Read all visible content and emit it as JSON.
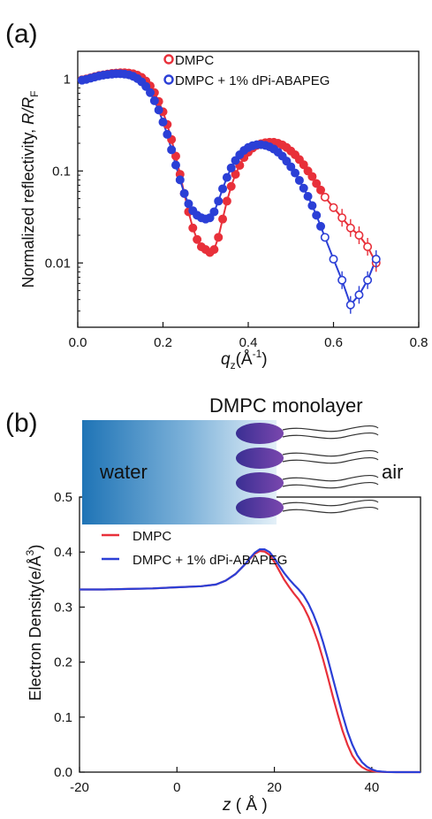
{
  "panels": {
    "a": {
      "label": "(a)"
    },
    "b": {
      "label": "(b)"
    }
  },
  "colors": {
    "dmpc": "#e8303a",
    "peg": "#2b3fd6",
    "water_dark": "#1f74b6",
    "water_light": "#dcebf6",
    "headgroup": "#6a3fa0"
  },
  "chart_data": [
    {
      "type": "scatter",
      "panel": "a",
      "ylabel_main": "Normalized reflectivity, ",
      "ylabel_italic": "R/R",
      "ylabel_sub": "F",
      "xlabel_main": "q",
      "xlabel_sub": "z",
      "xlabel_unit": "(Å",
      "xlabel_sup": "-1",
      "xlabel_close": ")",
      "xlim": [
        0,
        0.8
      ],
      "ylim": [
        0.002,
        2
      ],
      "yscale": "log",
      "xticks": [
        "0.0",
        "0.2",
        "0.4",
        "0.6",
        "0.8"
      ],
      "xtick_values": [
        0,
        0.2,
        0.4,
        0.6,
        0.8
      ],
      "yticks": [
        "1",
        "0.1",
        "0.01"
      ],
      "ytick_values": [
        1,
        0.1,
        0.01
      ],
      "legend_position": "top-right",
      "series": [
        {
          "name": "DMPC",
          "marker": "open-circle",
          "x": [
            0.01,
            0.02,
            0.03,
            0.04,
            0.05,
            0.06,
            0.07,
            0.08,
            0.09,
            0.1,
            0.11,
            0.12,
            0.13,
            0.14,
            0.15,
            0.16,
            0.17,
            0.18,
            0.19,
            0.2,
            0.21,
            0.22,
            0.23,
            0.24,
            0.25,
            0.26,
            0.27,
            0.28,
            0.29,
            0.3,
            0.31,
            0.32,
            0.33,
            0.34,
            0.35,
            0.36,
            0.37,
            0.38,
            0.39,
            0.4,
            0.41,
            0.42,
            0.43,
            0.44,
            0.45,
            0.46,
            0.47,
            0.48,
            0.49,
            0.5,
            0.51,
            0.52,
            0.53,
            0.54,
            0.55,
            0.56,
            0.57,
            0.58,
            0.6,
            0.62,
            0.64,
            0.66,
            0.68,
            0.7
          ],
          "y": [
            0.98,
            1.0,
            1.03,
            1.06,
            1.09,
            1.11,
            1.13,
            1.15,
            1.16,
            1.17,
            1.17,
            1.16,
            1.14,
            1.1,
            1.04,
            0.95,
            0.84,
            0.71,
            0.57,
            0.44,
            0.32,
            0.22,
            0.145,
            0.092,
            0.057,
            0.036,
            0.024,
            0.018,
            0.015,
            0.014,
            0.013,
            0.014,
            0.019,
            0.03,
            0.047,
            0.068,
            0.092,
            0.115,
            0.14,
            0.16,
            0.177,
            0.19,
            0.198,
            0.203,
            0.205,
            0.205,
            0.2,
            0.192,
            0.18,
            0.165,
            0.15,
            0.133,
            0.117,
            0.1,
            0.087,
            0.073,
            0.062,
            0.052,
            0.04,
            0.031,
            0.024,
            0.02,
            0.015,
            0.01
          ]
        },
        {
          "name": "DMPC + 1% dPi-ABAPEG",
          "marker": "open-circle",
          "x": [
            0.01,
            0.02,
            0.03,
            0.04,
            0.05,
            0.06,
            0.07,
            0.08,
            0.09,
            0.1,
            0.11,
            0.12,
            0.13,
            0.14,
            0.15,
            0.16,
            0.17,
            0.18,
            0.19,
            0.2,
            0.21,
            0.22,
            0.23,
            0.24,
            0.25,
            0.26,
            0.27,
            0.28,
            0.29,
            0.3,
            0.31,
            0.32,
            0.33,
            0.34,
            0.35,
            0.36,
            0.37,
            0.38,
            0.39,
            0.4,
            0.41,
            0.42,
            0.43,
            0.44,
            0.45,
            0.46,
            0.47,
            0.48,
            0.49,
            0.5,
            0.51,
            0.52,
            0.53,
            0.54,
            0.55,
            0.56,
            0.57,
            0.58,
            0.6,
            0.62,
            0.64,
            0.66,
            0.68,
            0.7
          ],
          "y": [
            0.97,
            0.99,
            1.02,
            1.05,
            1.08,
            1.1,
            1.12,
            1.13,
            1.14,
            1.14,
            1.13,
            1.11,
            1.07,
            1.01,
            0.93,
            0.83,
            0.71,
            0.58,
            0.46,
            0.34,
            0.25,
            0.17,
            0.116,
            0.08,
            0.057,
            0.044,
            0.037,
            0.033,
            0.031,
            0.03,
            0.031,
            0.036,
            0.047,
            0.064,
            0.085,
            0.108,
            0.13,
            0.15,
            0.167,
            0.18,
            0.188,
            0.193,
            0.193,
            0.19,
            0.183,
            0.173,
            0.16,
            0.145,
            0.128,
            0.111,
            0.095,
            0.079,
            0.065,
            0.053,
            0.042,
            0.033,
            0.025,
            0.019,
            0.011,
            0.0065,
            0.0035,
            0.0045,
            0.0065,
            0.011
          ]
        }
      ]
    },
    {
      "type": "line",
      "panel": "b",
      "ylabel": "Electron Density(e/Å",
      "ylabel_sup": "3",
      "ylabel_close": ")",
      "xlabel_italic": "z",
      "xlabel_rest": " ( Å )",
      "xlim": [
        -20,
        50
      ],
      "ylim": [
        0,
        0.5
      ],
      "xticks": [
        "-20",
        "0",
        "20",
        "40"
      ],
      "xtick_values": [
        -20,
        0,
        20,
        40
      ],
      "yticks": [
        "0.0",
        "0.1",
        "0.2",
        "0.3",
        "0.4",
        "0.5"
      ],
      "ytick_values": [
        0,
        0.1,
        0.2,
        0.3,
        0.4,
        0.5
      ],
      "legend_position": "top-left",
      "series": [
        {
          "name": "DMPC",
          "x": [
            -20,
            -15,
            -10,
            -5,
            0,
            5,
            8,
            10,
            12,
            14,
            15,
            16,
            17,
            18,
            19,
            20,
            21,
            22,
            23,
            24,
            25,
            26,
            27,
            28,
            29,
            30,
            31,
            32,
            33,
            34,
            35,
            36,
            37,
            38,
            39,
            40,
            41,
            42,
            43,
            45,
            50
          ],
          "y": [
            0.332,
            0.332,
            0.333,
            0.334,
            0.336,
            0.338,
            0.341,
            0.348,
            0.36,
            0.378,
            0.388,
            0.397,
            0.402,
            0.401,
            0.395,
            0.382,
            0.366,
            0.35,
            0.337,
            0.325,
            0.314,
            0.3,
            0.282,
            0.26,
            0.235,
            0.205,
            0.172,
            0.138,
            0.105,
            0.075,
            0.05,
            0.03,
            0.017,
            0.009,
            0.004,
            0.002,
            0.001,
            0.0005,
            0.0002,
            0,
            0
          ]
        },
        {
          "name": "DMPC + 1% dPi-ABAPEG",
          "x": [
            -20,
            -15,
            -10,
            -5,
            0,
            5,
            8,
            10,
            12,
            14,
            15,
            16,
            17,
            18,
            19,
            20,
            21,
            22,
            23,
            24,
            25,
            26,
            27,
            28,
            29,
            30,
            31,
            32,
            33,
            34,
            35,
            36,
            37,
            38,
            39,
            40,
            41,
            42,
            43,
            45,
            50
          ],
          "y": [
            0.332,
            0.332,
            0.333,
            0.334,
            0.336,
            0.338,
            0.341,
            0.348,
            0.36,
            0.378,
            0.389,
            0.399,
            0.405,
            0.405,
            0.4,
            0.389,
            0.375,
            0.362,
            0.351,
            0.341,
            0.332,
            0.321,
            0.306,
            0.287,
            0.264,
            0.236,
            0.205,
            0.171,
            0.137,
            0.104,
            0.074,
            0.05,
            0.031,
            0.018,
            0.01,
            0.005,
            0.002,
            0.001,
            0.0004,
            0,
            0
          ]
        }
      ]
    }
  ],
  "diagram": {
    "title": "DMPC monolayer",
    "water_label": "water",
    "air_label": "air"
  }
}
